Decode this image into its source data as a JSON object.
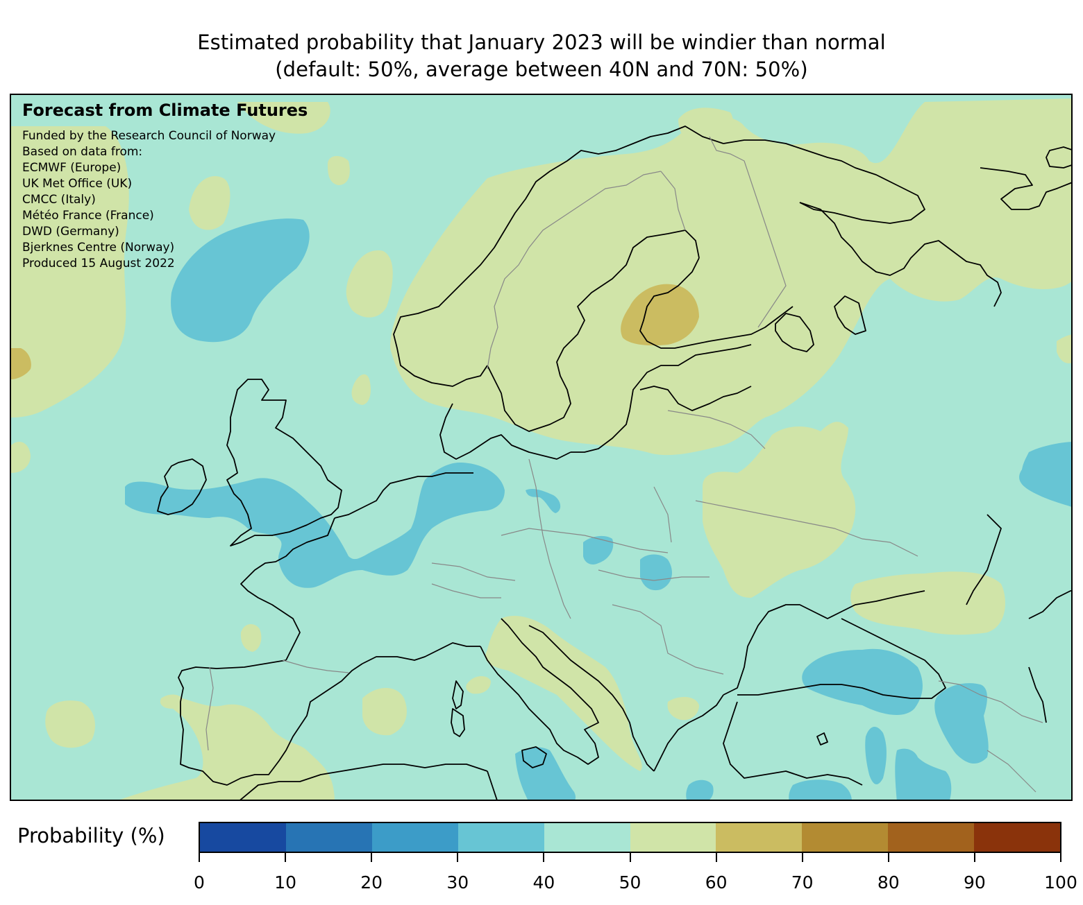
{
  "title": {
    "line1": "Estimated probability that January 2023 will be windier than normal",
    "line2": "(default: 50%, average between 40N and 70N: 50%)"
  },
  "info": {
    "heading": "Forecast from Climate Futures",
    "lines": [
      "Funded by the Research Council of Norway",
      "Based on data from:",
      "ECMWF (Europe)",
      "UK Met Office (UK)",
      "CMCC (Italy)",
      "Météo France (France)",
      "DWD (Germany)",
      "Bjerknes Centre (Norway)",
      "Produced 15 August 2022"
    ]
  },
  "colorbar": {
    "label": "Probability (%)",
    "ticks": [
      "0",
      "10",
      "20",
      "30",
      "40",
      "50",
      "60",
      "70",
      "80",
      "90",
      "100"
    ],
    "bins": [
      {
        "range": "0-10",
        "color": "#1749a0"
      },
      {
        "range": "10-20",
        "color": "#2774b4"
      },
      {
        "range": "20-30",
        "color": "#3c9cc8"
      },
      {
        "range": "30-40",
        "color": "#67c5d4"
      },
      {
        "range": "40-50",
        "color": "#a9e6d4"
      },
      {
        "range": "50-60",
        "color": "#d0e4a8"
      },
      {
        "range": "60-70",
        "color": "#cbbc61"
      },
      {
        "range": "70-80",
        "color": "#b38b32"
      },
      {
        "range": "80-90",
        "color": "#a2621d"
      },
      {
        "range": "90-100",
        "color": "#8a330b"
      }
    ]
  },
  "chart_data": {
    "type": "heatmap",
    "title": "Estimated probability that January 2023 will be windier than normal",
    "subtitle": "(default: 50%, average between 40N and 70N: 50%)",
    "region": "Europe",
    "colorbar_label": "Probability (%)",
    "value_range": [
      0,
      100
    ],
    "levels": [
      0,
      10,
      20,
      30,
      40,
      50,
      60,
      70,
      80,
      90,
      100
    ],
    "background_bin": "40-50",
    "regions": [
      {
        "area": "Scandinavia (Norway, Sweden, Finland)",
        "bin": "50-60"
      },
      {
        "area": "Gulf of Bothnia / central Finland",
        "bin": "60-70"
      },
      {
        "area": "Northwest Russia / Kola / Arkhangelsk",
        "bin": "50-60"
      },
      {
        "area": "Norwegian Sea",
        "bin": "30-40"
      },
      {
        "area": "Ireland, Wales, English Channel, North Sea south, Benelux",
        "bin": "30-40"
      },
      {
        "area": "Belarus / northern Ukraine",
        "bin": "50-60"
      },
      {
        "area": "Southeastern Russia / Caucasus steppe",
        "bin": "50-60"
      },
      {
        "area": "Black Sea / northern Turkey",
        "bin": "30-40"
      },
      {
        "area": "Eastern Turkey / Caucasus",
        "bin": "30-40"
      },
      {
        "area": "Italy / Adriatic / Balkans west",
        "bin": "50-60"
      },
      {
        "area": "Iberian Peninsula south",
        "bin": "50-60"
      },
      {
        "area": "Ionian Sea / Sicily",
        "bin": "30-40"
      },
      {
        "area": "Far west Atlantic near Greenland",
        "bin": "60-70"
      }
    ]
  }
}
